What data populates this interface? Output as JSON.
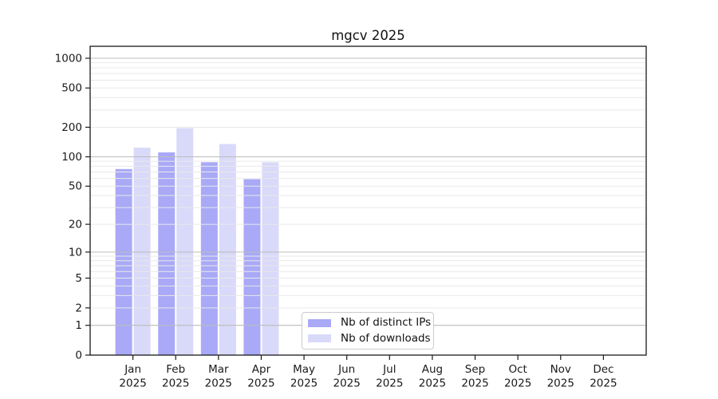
{
  "chart_data": {
    "type": "bar",
    "title": "mgcv 2025",
    "year_label": "2025",
    "months": [
      "Jan",
      "Feb",
      "Mar",
      "Apr",
      "May",
      "Jun",
      "Jul",
      "Aug",
      "Sep",
      "Oct",
      "Nov",
      "Dec"
    ],
    "series": [
      {
        "name": "Nb of distinct IPs",
        "color": "#a9a9f8",
        "values": [
          75,
          111,
          88,
          59,
          null,
          null,
          null,
          null,
          null,
          null,
          null,
          null
        ]
      },
      {
        "name": "Nb of downloads",
        "color": "#d9d9f9",
        "values": [
          124,
          196,
          135,
          88,
          null,
          null,
          null,
          null,
          null,
          null,
          null,
          null
        ]
      }
    ],
    "y_scale": "log1p",
    "y_ticks": [
      0,
      1,
      2,
      5,
      10,
      20,
      50,
      100,
      200,
      500,
      1000
    ],
    "y_major_gridlines": [
      1,
      10,
      100,
      1000
    ],
    "ylim": [
      0,
      1320
    ],
    "grid": "on",
    "legend_position": "lower center-left inside plot",
    "colors": {
      "major_grid": "#bdbdbd",
      "minor_grid": "#e9e9e9",
      "axis_line": "#1a1a1a",
      "tick_text": "#1a1a1a"
    }
  }
}
